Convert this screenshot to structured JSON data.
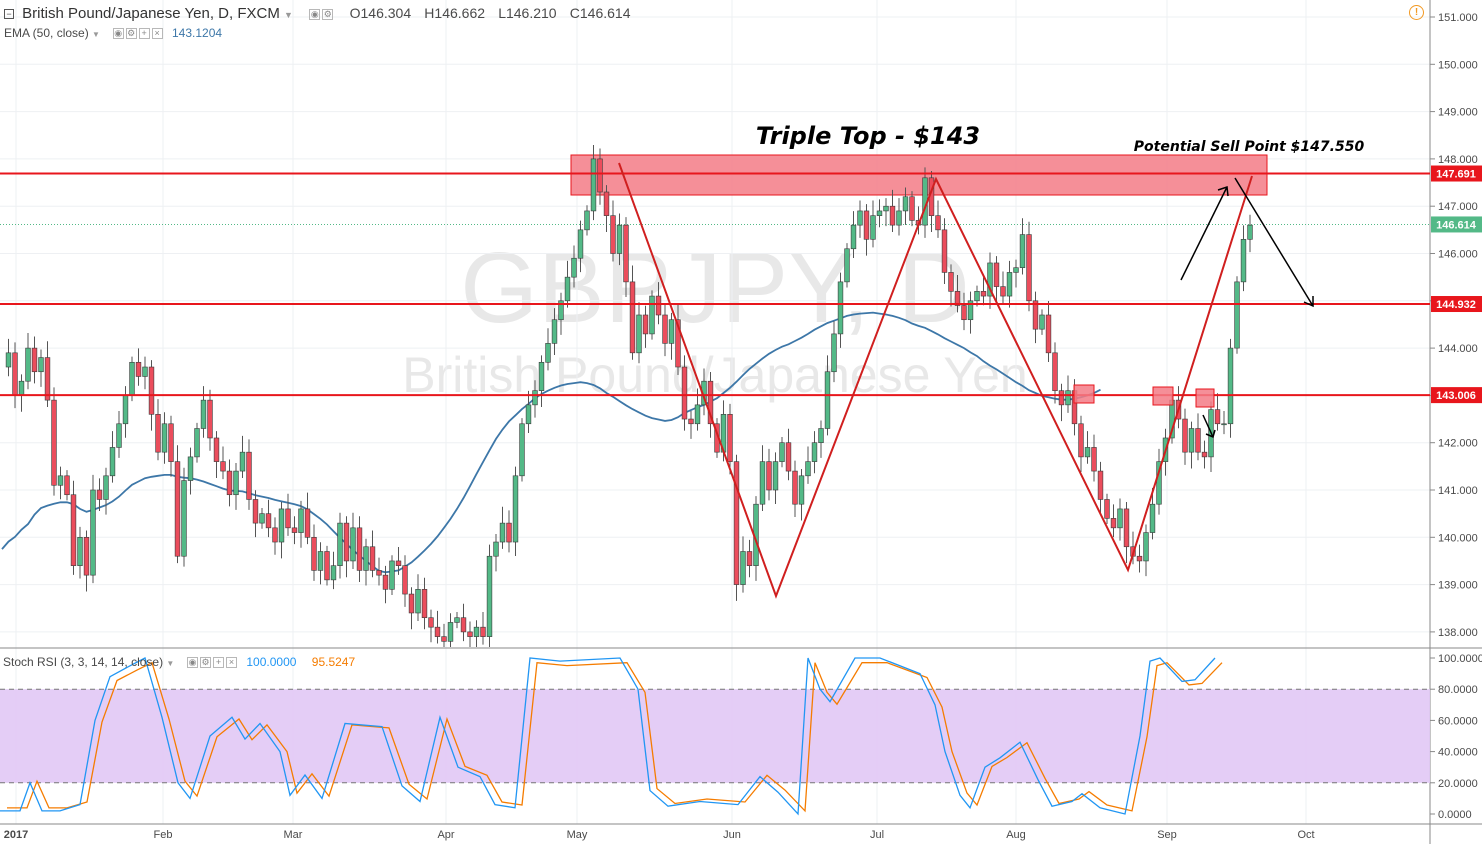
{
  "header": {
    "symbol_icon": "collapse-square-icon",
    "title": "British Pound/Japanese Yen, D, FXCM",
    "ohlc": {
      "o_label": "O",
      "o": "146.304",
      "h_label": "H",
      "h": "146.662",
      "l_label": "L",
      "l": "146.210",
      "c_label": "C",
      "c": "146.614"
    },
    "ema_label": "EMA (50, close)",
    "ema_value": "143.1204",
    "alert_icon": "warning-icon"
  },
  "watermark": {
    "symbol": "GBPJPY, D",
    "name": "British Pound/Japanese Yen"
  },
  "annotations": {
    "triple_top": "Triple Top - $143",
    "sell_point": "Potential Sell Point $147.550"
  },
  "oscillator": {
    "label": "Stoch RSI (3, 3, 14, 14, close)",
    "k_value": "100.0000",
    "d_value": "95.5247",
    "k_color": "#2196f3",
    "d_color": "#f57c00",
    "band_color": "#e1c8f5"
  },
  "colors": {
    "up": "#53b987",
    "down": "#eb4d5c",
    "ema": "#3d77a8",
    "lines": "#e8161c",
    "zone": "#f37b86"
  },
  "chart_data": {
    "type": "candlestick",
    "title": "British Pound/Japanese Yen, D, FXCM",
    "ylim": [
      137.7,
      151.3
    ],
    "yticks": [
      "151.000",
      "150.000",
      "149.000",
      "148.000",
      "147.000",
      "146.000",
      "145.000",
      "144.000",
      "143.000",
      "142.000",
      "141.000",
      "140.000",
      "139.000",
      "138.000"
    ],
    "x_labels": [
      "2017",
      "Feb",
      "Mar",
      "Apr",
      "May",
      "Jun",
      "Jul",
      "Aug",
      "Sep",
      "Oct"
    ],
    "last_price": "146.614",
    "horizontal_levels": [
      {
        "value": 147.691,
        "label": "147.691"
      },
      {
        "value": 144.932,
        "label": "144.932"
      },
      {
        "value": 143.006,
        "label": "143.006"
      }
    ],
    "resistance_zone": [
      147.25,
      148.1
    ],
    "pattern_points": [
      [
        1,
        "May 10",
        148.0
      ],
      [
        2,
        "Jun 9",
        138.8
      ],
      [
        3,
        "Jul 14",
        147.6
      ],
      [
        4,
        "Aug 24",
        139.3
      ],
      [
        5,
        "Sep 21",
        147.6
      ]
    ],
    "projection_arrows": [
      "up to 147.550",
      "down to 144.932"
    ],
    "close_series": [
      143.6,
      143.9,
      143.0,
      143.3,
      144.0,
      143.5,
      143.8,
      142.9,
      141.1,
      141.3,
      140.9,
      139.4,
      140.0,
      139.2,
      141.0,
      140.8,
      141.3,
      141.9,
      142.4,
      143.0,
      143.7,
      143.4,
      143.6,
      142.6,
      141.8,
      142.4,
      141.6,
      139.6,
      141.2,
      141.7,
      142.3,
      142.9,
      142.1,
      141.6,
      141.4,
      140.9,
      141.4,
      141.8,
      140.8,
      140.3,
      140.5,
      140.2,
      139.9,
      140.6,
      140.2,
      140.1,
      140.6,
      140.0,
      139.3,
      139.7,
      139.1,
      139.4,
      140.3,
      139.5,
      140.2,
      139.3,
      139.8,
      139.3,
      139.2,
      138.9,
      139.5,
      139.4,
      138.8,
      138.4,
      138.9,
      138.3,
      138.1,
      137.9,
      137.8,
      138.2,
      138.3,
      138.0,
      137.9,
      138.1,
      137.9,
      139.6,
      139.9,
      140.3,
      139.9,
      141.3,
      142.4,
      142.8,
      143.1,
      143.7,
      144.1,
      144.6,
      145.0,
      145.5,
      145.9,
      146.5,
      146.9,
      148.0,
      147.3,
      146.8,
      146.0,
      146.6,
      145.4,
      143.9,
      144.7,
      144.3,
      145.1,
      144.7,
      144.1,
      144.6,
      143.6,
      142.5,
      142.4,
      142.8,
      143.3,
      142.4,
      141.8,
      142.6,
      141.6,
      139.0,
      139.7,
      139.4,
      140.7,
      141.6,
      141.0,
      141.6,
      142.0,
      141.4,
      140.7,
      141.3,
      141.6,
      142.0,
      142.3,
      143.5,
      144.3,
      145.4,
      146.1,
      146.6,
      146.9,
      146.3,
      146.8,
      146.9,
      147.0,
      146.6,
      146.9,
      147.2,
      146.7,
      146.6,
      147.6,
      146.8,
      146.5,
      145.6,
      145.2,
      144.9,
      144.6,
      145.0,
      145.2,
      145.1,
      145.8,
      145.3,
      145.1,
      145.6,
      145.7,
      146.4,
      145.0,
      144.4,
      144.7,
      143.9,
      143.1,
      142.8,
      143.1,
      142.4,
      141.7,
      141.9,
      141.4,
      140.8,
      140.4,
      140.2,
      140.6,
      139.8,
      139.6,
      139.5,
      140.1,
      140.7,
      141.6,
      142.1,
      142.9,
      142.5,
      141.8,
      142.3,
      141.8,
      141.7,
      142.7,
      142.4,
      142.4,
      144.0,
      145.4,
      146.3,
      146.6
    ],
    "ema_series": [
      139.75,
      139.91,
      140.01,
      140.16,
      140.28,
      140.48,
      140.62,
      140.67,
      140.71,
      140.74,
      140.74,
      140.7,
      140.6,
      140.54,
      140.58,
      140.63,
      140.68,
      140.76,
      140.86,
      140.99,
      141.11,
      141.18,
      141.25,
      141.28,
      141.3,
      141.32,
      141.32,
      141.28,
      141.26,
      141.25,
      141.22,
      141.18,
      141.13,
      141.08,
      141.03,
      140.99,
      140.98,
      140.97,
      140.93,
      140.89,
      140.86,
      140.83,
      140.79,
      140.76,
      140.73,
      140.7,
      140.66,
      140.59,
      140.49,
      140.39,
      140.27,
      140.13,
      139.99,
      139.86,
      139.73,
      139.61,
      139.5,
      139.39,
      139.29,
      139.26,
      139.28,
      139.3,
      139.38,
      139.47,
      139.59,
      139.72,
      139.86,
      140.02,
      140.2,
      140.39,
      140.6,
      140.83,
      141.08,
      141.34,
      141.59,
      141.84,
      142.08,
      142.28,
      142.45,
      142.58,
      142.71,
      142.82,
      142.94,
      143.03,
      143.1,
      143.16,
      143.21,
      143.24,
      143.26,
      143.28,
      143.26,
      143.22,
      143.15,
      143.05,
      142.97,
      142.88,
      142.79,
      142.71,
      142.64,
      142.57,
      142.52,
      142.49,
      142.46,
      142.48,
      142.54,
      142.63,
      142.69,
      142.75,
      142.8,
      142.87,
      142.94,
      143.05,
      143.16,
      143.29,
      143.43,
      143.56,
      143.67,
      143.78,
      143.88,
      143.96,
      144.03,
      144.08,
      144.15,
      144.22,
      144.3,
      144.39,
      144.46,
      144.53,
      144.58,
      144.63,
      144.68,
      144.71,
      144.73,
      144.74,
      144.75,
      144.73,
      144.71,
      144.68,
      144.64,
      144.59,
      144.52,
      144.47,
      144.43,
      144.36,
      144.29,
      144.21,
      144.14,
      144.07,
      144.0,
      143.91,
      143.83,
      143.72,
      143.63,
      143.55,
      143.46,
      143.37,
      143.28,
      143.2,
      143.11,
      143.05,
      142.99,
      142.96,
      142.93,
      142.91,
      142.91,
      142.93,
      142.96,
      143.0,
      143.05,
      143.12
    ]
  }
}
